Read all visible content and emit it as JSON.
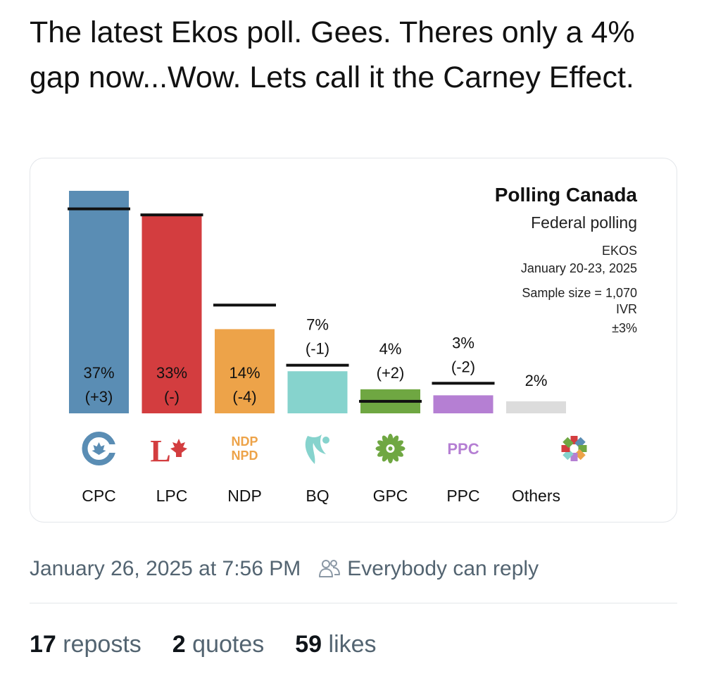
{
  "post": {
    "text": "The latest Ekos poll. Gees. Theres only a 4% gap now...Wow. Lets call it the Carney Effect.",
    "timestamp": "January 26, 2025 at 7:56 PM",
    "reply_setting": "Everybody can reply",
    "reply_icon": "people-icon"
  },
  "stats": [
    {
      "count": "17",
      "label": "reposts"
    },
    {
      "count": "2",
      "label": "quotes"
    },
    {
      "count": "59",
      "label": "likes"
    }
  ],
  "chart_info": {
    "title": "Polling Canada",
    "subtitle": "Federal polling",
    "pollster": "EKOS",
    "dates": "January 20-23, 2025",
    "sample": "Sample size = 1,070",
    "method": "IVR",
    "margin": "±3%"
  },
  "chart_data": {
    "type": "bar",
    "title": "Polling Canada",
    "subtitle": "Federal polling",
    "categories": [
      "CPC",
      "LPC",
      "NDP",
      "BQ",
      "GPC",
      "PPC",
      "Others"
    ],
    "values": [
      37,
      33,
      14,
      7,
      4,
      3,
      2
    ],
    "previous": [
      34,
      33,
      18,
      8,
      2,
      5,
      null
    ],
    "value_labels": [
      "37%",
      "33%",
      "14%",
      "7%",
      "4%",
      "3%",
      "2%"
    ],
    "change_labels": [
      "(+3)",
      "(-)",
      "(-4)",
      "(-1)",
      "(+2)",
      "(-2)",
      ""
    ],
    "colors": [
      "#5a8db4",
      "#d33d3f",
      "#eda349",
      "#86d3cd",
      "#6fa742",
      "#b57fd3",
      "#dcdcdc"
    ],
    "logos": [
      "cpc-logo-icon",
      "lpc-logo-icon",
      "ndp-logo-icon",
      "bq-logo-icon",
      "gpc-logo-icon",
      "ppc-logo-icon",
      "others-logo-icon"
    ],
    "ndp_logo_text": [
      "NDP",
      "NPD"
    ],
    "ppc_logo_text": "PPC",
    "ylim": [
      0,
      37
    ],
    "grid": false,
    "legend": "none"
  }
}
